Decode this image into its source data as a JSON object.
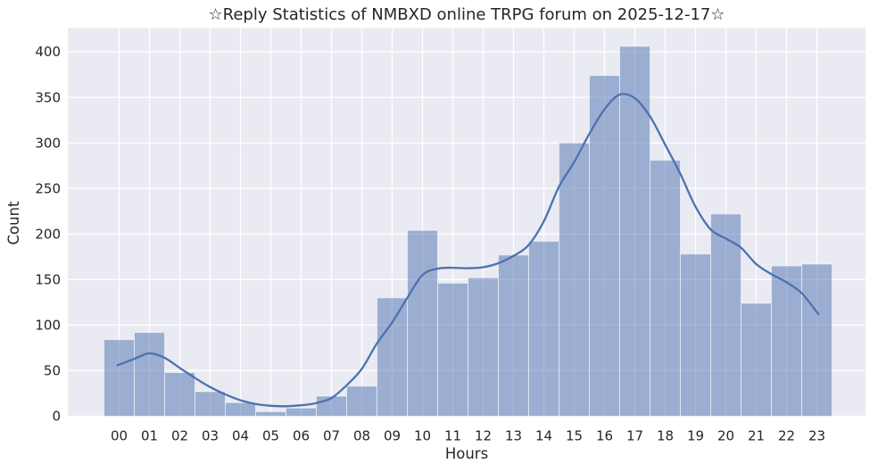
{
  "chart_data": {
    "type": "bar",
    "subtype": "histogram-with-kde-overlay",
    "title": "☆Reply Statistics of NMBXD online TRPG forum on 2025-12-17☆",
    "xlabel": "Hours",
    "ylabel": "Count",
    "categories": [
      "00",
      "01",
      "02",
      "03",
      "04",
      "05",
      "06",
      "07",
      "08",
      "09",
      "10",
      "11",
      "12",
      "13",
      "14",
      "15",
      "16",
      "17",
      "18",
      "19",
      "20",
      "21",
      "22",
      "23"
    ],
    "values": [
      84,
      92,
      48,
      27,
      15,
      5,
      9,
      22,
      33,
      130,
      204,
      146,
      152,
      177,
      192,
      300,
      374,
      406,
      281,
      178,
      222,
      124,
      165,
      167
    ],
    "series": [
      {
        "name": "reply-count-histogram",
        "values": [
          84,
          92,
          48,
          27,
          15,
          5,
          9,
          22,
          33,
          130,
          204,
          146,
          152,
          177,
          192,
          300,
          374,
          406,
          281,
          178,
          222,
          124,
          165,
          167
        ]
      },
      {
        "name": "kde-curve",
        "points": [
          [
            -0.05,
            56
          ],
          [
            0.5,
            63
          ],
          [
            1.0,
            69
          ],
          [
            1.5,
            64
          ],
          [
            2.0,
            53
          ],
          [
            2.5,
            42
          ],
          [
            3.0,
            32
          ],
          [
            3.5,
            24
          ],
          [
            4.0,
            17.5
          ],
          [
            4.5,
            13.5
          ],
          [
            5.0,
            11.5
          ],
          [
            5.5,
            11
          ],
          [
            6.0,
            12
          ],
          [
            6.5,
            14.5
          ],
          [
            7.0,
            20
          ],
          [
            7.5,
            34
          ],
          [
            8.0,
            52
          ],
          [
            8.5,
            80
          ],
          [
            9.0,
            103
          ],
          [
            9.5,
            130
          ],
          [
            10.0,
            155
          ],
          [
            10.5,
            162
          ],
          [
            11.0,
            163
          ],
          [
            11.5,
            162.5
          ],
          [
            12.0,
            163.5
          ],
          [
            12.5,
            168
          ],
          [
            13.0,
            176
          ],
          [
            13.5,
            188
          ],
          [
            14.0,
            214
          ],
          [
            14.5,
            252
          ],
          [
            15.0,
            279
          ],
          [
            15.5,
            310
          ],
          [
            16.0,
            337
          ],
          [
            16.5,
            353
          ],
          [
            17.0,
            349
          ],
          [
            17.5,
            329
          ],
          [
            18.0,
            298
          ],
          [
            18.5,
            266
          ],
          [
            19.0,
            230
          ],
          [
            19.5,
            205
          ],
          [
            20.0,
            195
          ],
          [
            20.5,
            185
          ],
          [
            21.0,
            167
          ],
          [
            21.5,
            156
          ],
          [
            22.0,
            147
          ],
          [
            22.5,
            135
          ],
          [
            23.05,
            112
          ]
        ]
      }
    ],
    "ylim": [
      0,
      426
    ],
    "yticks": [
      0,
      50,
      100,
      150,
      200,
      250,
      300,
      350,
      400
    ],
    "grid": true,
    "legend": false,
    "colors": {
      "figure_bg": "#ffffff",
      "axes_bg": "#eaeaf2",
      "gridline": "#ffffff",
      "bar_fill": "rgba(76,114,176,0.5)",
      "bar_edge": "rgba(255,255,255,0.55)",
      "kde_line": "#4c72b0",
      "text": "#262626"
    }
  }
}
